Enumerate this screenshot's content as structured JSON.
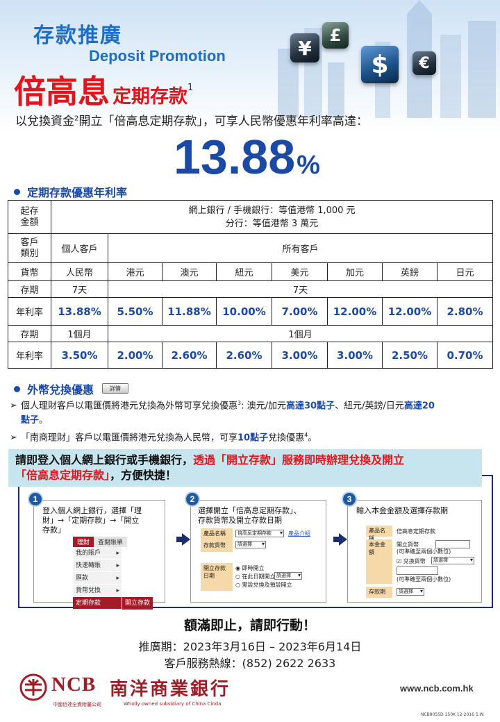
{
  "header": {
    "title_cn": "存款推廣",
    "title_en": "Deposit Promotion",
    "product_main": "倍高息",
    "product_sub": "定期存款",
    "product_note": "1",
    "currency_icons": [
      "yen-sign",
      "pound-sign",
      "dollar-sign",
      "euro-sign"
    ]
  },
  "intro": {
    "pre": "以兌換資金",
    "note": "2",
    "post": "開立「倍高息定期存款」，可享人民幣優惠年利率高達："
  },
  "headline_rate": {
    "number": "13.88",
    "unit": "%"
  },
  "section1": {
    "title": "定期存款優惠年利率"
  },
  "rate_table": {
    "min_amount_label": [
      "起存",
      "金額"
    ],
    "min_amount_lines": [
      "網上銀行 / 手機銀行：等值港幣 1,000 元",
      "分行：等值港幣 3 萬元"
    ],
    "customer_label": [
      "客戶",
      "類別"
    ],
    "customer_personal": "個人客戶",
    "customer_all": "所有客戶",
    "currency_label": "貨幣",
    "currencies": [
      "人民幣",
      "港元",
      "澳元",
      "紐元",
      "美元",
      "加元",
      "英鎊",
      "日元"
    ],
    "term_label": "存期",
    "rate_label": "年利率",
    "term1_first": "7天",
    "term1_rest": "7天",
    "rates_7d": [
      "13.88%",
      "5.50%",
      "11.88%",
      "10.00%",
      "7.00%",
      "12.00%",
      "12.00%",
      "2.80%"
    ],
    "term2_first": "1個月",
    "term2_rest": "1個月",
    "rates_1m": [
      "3.50%",
      "2.00%",
      "2.60%",
      "2.60%",
      "3.00%",
      "3.00%",
      "2.50%",
      "0.70%"
    ]
  },
  "section2": {
    "title": "外幣兌換優惠",
    "detail_button": "詳情"
  },
  "bullet1": {
    "a": "個人理財客戶以電匯價將港元兌換為外幣可享兌換優惠",
    "note": "3",
    "b": ": 澳元/加元",
    "c": "高達30點子",
    "d": "、紐元/英鎊/日元",
    "e": "高達20",
    "f": "點子",
    "g": "。"
  },
  "bullet2": {
    "a": "「南商理財」客戶以電匯價將港元兌換為人民幣，可享",
    "b": "10點子",
    "c": "兌換優惠",
    "note": "4",
    "d": "。"
  },
  "cta": {
    "l1a": "請即登入個人網上銀行或手機銀行，",
    "l1b": "透過「開立存款」服務即時辦理兌換及開立",
    "l2a": "「倍高息定期存款」",
    "l2b": "，方便快捷！"
  },
  "step1": {
    "num": "1",
    "desc": [
      "登入個人網上銀行，選擇「理",
      "財」→「定期存款」→「開立",
      "存款」"
    ],
    "tab1": "理財",
    "tab2": "查閱賬單",
    "items": [
      "我的賬戶",
      "快速轉賬",
      "匯款",
      "貨幣兌換",
      "定期存款"
    ],
    "popup": "開立存款"
  },
  "step2": {
    "num": "2",
    "desc": [
      "選擇開立「倍高息定期存款」、",
      "存款貨幣及開立存款日期"
    ],
    "k_product": "產品名稱",
    "v_product": "倍高息定期存款",
    "link": "產品介紹",
    "k_currency": "存款貨幣",
    "v_currency": "請選擇",
    "k_date": "開立存款日期",
    "opt1": "即時開立",
    "opt2": "在此日期開立",
    "opt2_select": "請選擇",
    "opt3": "需設兌換及預設開立"
  },
  "step3": {
    "num": "3",
    "desc": [
      "輸入本金金額及選擇存款期"
    ],
    "k_product": "產品名稱",
    "v_product": "倍高息定期存款",
    "k_amount": "本金金額",
    "amount_label": "開立貨幣",
    "amount_hint": "(可準確至兩個小數位)",
    "fx_label": "兌換貨幣",
    "fx_select": "請選擇",
    "amount_hint2": "(可準確至兩個小數位)",
    "k_term": "存款期",
    "v_term": "請選擇"
  },
  "footer": {
    "headline": "額滿即止，請即行動！",
    "period": "推廣期：2023年3月16日 – 2023年6月14日",
    "hotline": "客戶服務熱線：(852) 2622 2633",
    "logo_en": "NCB",
    "logo_cn": "南洋商業銀行",
    "sub_cn": "中國信達全資附屬公司",
    "sub_en": "Wholly owned subsidiary of China Cinda",
    "url": "www.ncb.com.hk",
    "code": "NCB805SD 150K 12-2016 S.W."
  },
  "colors": {
    "brand_red": "#e3141b",
    "brand_blue": "#1a4aa6",
    "bank_maroon": "#a01c26",
    "cta_bg": "#c7e5ee"
  }
}
